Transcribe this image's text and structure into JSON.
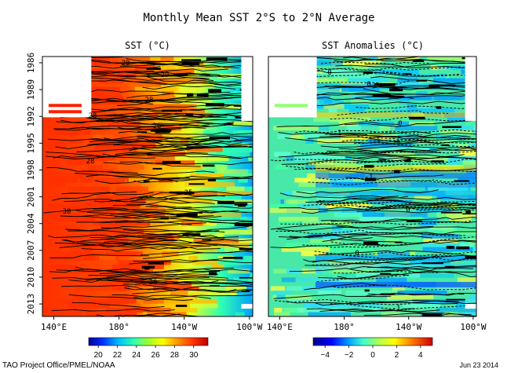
{
  "title": "Monthly Mean SST  2°S to 2°N Average",
  "footer": {
    "credit": "TAO Project Office/PMEL/NOAA",
    "date": "Jun 23 2014"
  },
  "colors": {
    "sst_scale": [
      "#0000a0",
      "#0030ff",
      "#00a0ff",
      "#00e0e0",
      "#30ff90",
      "#a0ff30",
      "#f0ff00",
      "#ffc000",
      "#ff7000",
      "#ff2000",
      "#c00000"
    ],
    "anom_scale": [
      "#000090",
      "#0000ff",
      "#0080ff",
      "#00d8ff",
      "#40ffb0",
      "#a0ff60",
      "#ffff00",
      "#ffa000",
      "#ff4000",
      "#d00000"
    ],
    "land_mask": "#ffffff",
    "contour": "#000000"
  },
  "chart_data": [
    {
      "type": "heatmap",
      "panel": "left",
      "title": "SST (°C)",
      "x_ticks": [
        "140°E",
        "180°",
        "140°W",
        "100°W"
      ],
      "x_values": [
        140,
        180,
        220,
        260
      ],
      "xlim": [
        133,
        262
      ],
      "y_ticks": [
        "1986",
        "1989",
        "1992",
        "1995",
        "1998",
        "2001",
        "2004",
        "2007",
        "2010",
        "2013"
      ],
      "y_values": [
        1986,
        1989,
        1992,
        1995,
        1998,
        2001,
        2004,
        2007,
        2010,
        2013
      ],
      "ylim": [
        1985.3,
        2014.4
      ],
      "colorbar_ticks": [
        20,
        22,
        24,
        26,
        28,
        30
      ],
      "colorbar_range": [
        19,
        31.5
      ],
      "contour_labels": [
        "29",
        "29",
        "28",
        "28",
        "26",
        "25",
        "28",
        "26",
        "30"
      ]
    },
    {
      "type": "heatmap",
      "panel": "right",
      "title": "SST Anomalies (°C)",
      "x_ticks": [
        "140°E",
        "180°",
        "140°W",
        "100°W"
      ],
      "x_values": [
        140,
        180,
        220,
        260
      ],
      "xlim": [
        133,
        262
      ],
      "y_ticks": [
        "1986",
        "1989",
        "1992",
        "1995",
        "1998",
        "2001",
        "2004",
        "2007",
        "2010",
        "2013"
      ],
      "y_values": [
        1986,
        1989,
        1992,
        1995,
        1998,
        2001,
        2004,
        2007,
        2010,
        2013
      ],
      "ylim": [
        1985.3,
        2014.4
      ],
      "colorbar_ticks": [
        -4,
        -2,
        0,
        2,
        4
      ],
      "colorbar_range": [
        -5,
        5
      ],
      "contour_labels": [
        "0",
        "0",
        "-1",
        "0",
        "-1",
        "0",
        "0",
        "-1",
        "0"
      ]
    }
  ]
}
